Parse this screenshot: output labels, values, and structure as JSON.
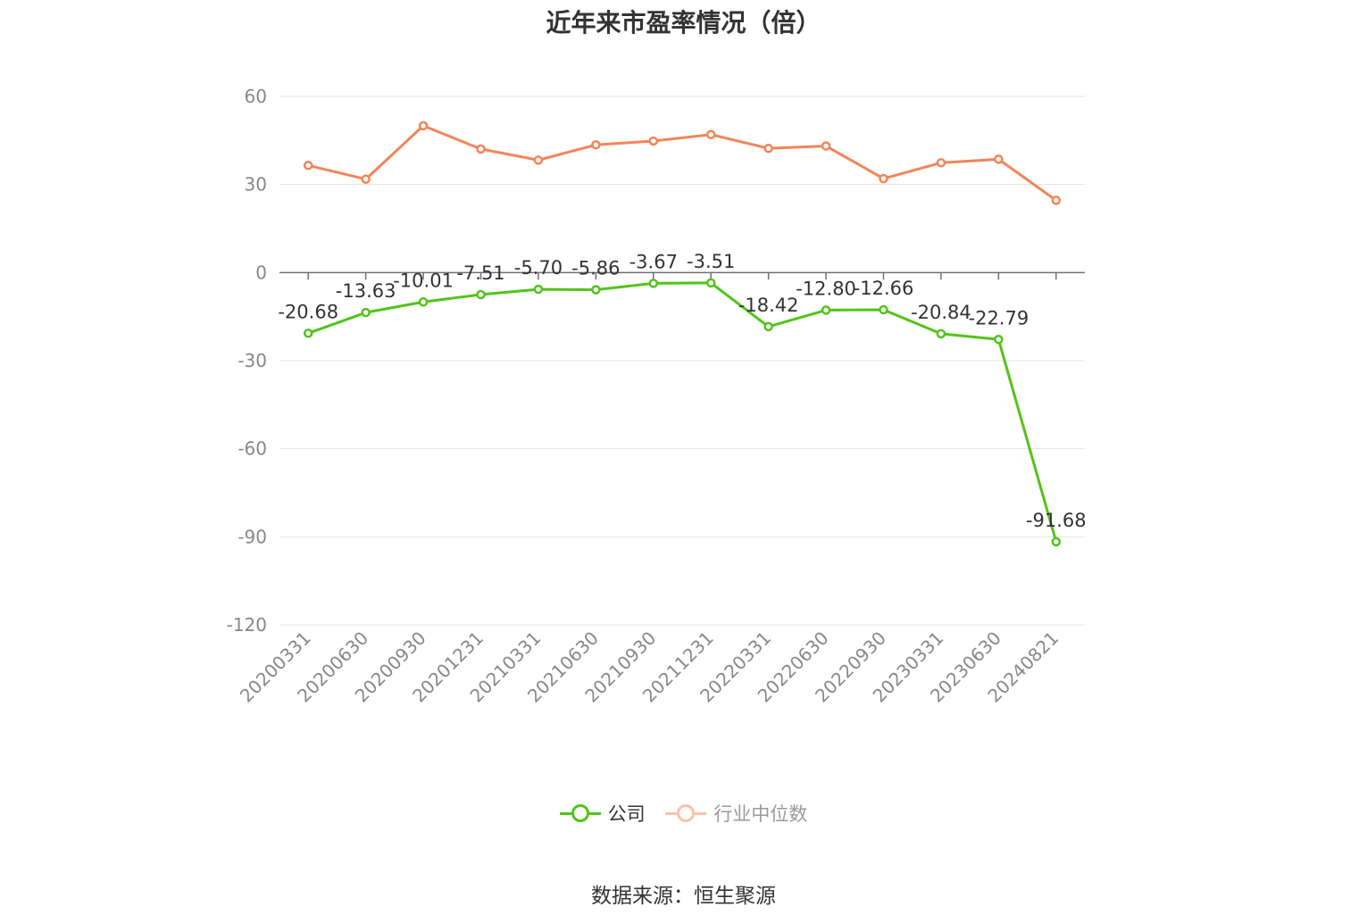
{
  "title": "近年来市盈率情况（倍）",
  "source": "数据来源：恒生聚源",
  "colors": {
    "company": "#52c41a",
    "industry": "#f2855a",
    "industry_legend": "#f8c2aa",
    "grid": "#e0e3ea",
    "axis": "#6e7079"
  },
  "chart_data": {
    "type": "line",
    "title": "近年来市盈率情况（倍）",
    "categories": [
      "20200331",
      "20200630",
      "20200930",
      "20201231",
      "20210331",
      "20210630",
      "20210930",
      "20211231",
      "20220331",
      "20220630",
      "20220930",
      "20230331",
      "20230630",
      "20240821"
    ],
    "ylim": [
      -120,
      60
    ],
    "yticks": [
      60,
      30,
      0,
      -30,
      -60,
      -90,
      -120
    ],
    "grid": true,
    "legend_position": "bottom",
    "series": [
      {
        "name": "公司",
        "color": "#52c41a",
        "show_labels": true,
        "values": [
          -20.68,
          -13.63,
          -10.01,
          -7.51,
          -5.7,
          -5.86,
          -3.67,
          -3.51,
          -18.42,
          -12.8,
          -12.66,
          -20.84,
          -22.79,
          -91.68
        ],
        "labels": [
          "-20.68",
          "-13.63",
          "-10.01",
          "-7.51",
          "-5.70",
          "-5.86",
          "-3.67",
          "-3.51",
          "-18.42",
          "-12.80",
          "-12.66",
          "-20.84",
          "-22.79",
          "-91.68"
        ]
      },
      {
        "name": "行业中位数",
        "color": "#f2855a",
        "show_labels": false,
        "values": [
          36.5,
          31.8,
          50.0,
          42.1,
          38.3,
          43.5,
          44.8,
          47.0,
          42.3,
          43.1,
          32.0,
          37.4,
          38.6,
          24.6
        ]
      }
    ]
  },
  "legend": [
    {
      "label": "公司",
      "color": "#52c41a",
      "active": true
    },
    {
      "label": "行业中位数",
      "color": "#f8c2aa",
      "active": false
    }
  ]
}
